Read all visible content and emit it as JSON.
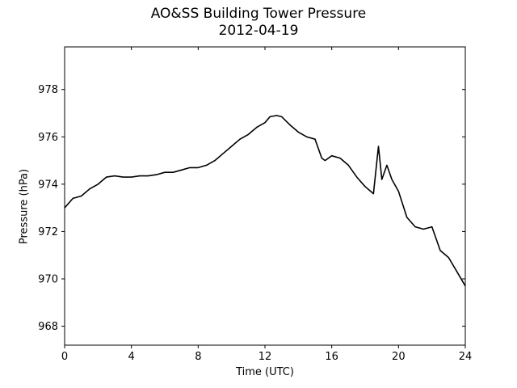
{
  "chart_data": {
    "type": "line",
    "title": "AO&SS Building Tower Pressure",
    "subtitle": "2012-04-19",
    "xlabel": "Time (UTC)",
    "ylabel": "Pressure (hPa)",
    "xlim": [
      0,
      24
    ],
    "ylim": [
      967.2,
      979.8
    ],
    "xticks": [
      0,
      4,
      8,
      12,
      16,
      20,
      24
    ],
    "yticks": [
      968,
      970,
      972,
      974,
      976,
      978
    ],
    "grid": false,
    "line_color": "#000000",
    "series": [
      {
        "x": [
          0,
          0.5,
          1,
          1.5,
          2,
          2.5,
          3,
          3.5,
          4,
          4.5,
          5,
          5.5,
          6,
          6.5,
          7,
          7.5,
          8,
          8.5,
          9,
          9.5,
          10,
          10.5,
          11,
          11.5,
          12,
          12.3,
          12.7,
          13,
          13.5,
          14,
          14.5,
          15,
          15.4,
          15.6,
          16,
          16.5,
          17,
          17.5,
          18,
          18.5,
          18.8,
          19,
          19.3,
          19.6,
          20,
          20.5,
          21,
          21.5,
          22,
          22.5,
          23,
          23.5,
          24
        ],
        "y": [
          973.0,
          973.4,
          973.5,
          973.8,
          974.0,
          974.3,
          974.35,
          974.3,
          974.3,
          974.35,
          974.35,
          974.4,
          974.5,
          974.5,
          974.6,
          974.7,
          974.7,
          974.8,
          975.0,
          975.3,
          975.6,
          975.9,
          976.1,
          976.4,
          976.6,
          976.85,
          976.9,
          976.85,
          976.5,
          976.2,
          976.0,
          975.9,
          975.1,
          975.0,
          975.2,
          975.1,
          974.8,
          974.3,
          973.9,
          973.6,
          975.6,
          974.2,
          974.8,
          974.2,
          973.7,
          972.6,
          972.2,
          972.1,
          972.2,
          971.2,
          970.9,
          970.3,
          969.7
        ]
      }
    ]
  }
}
